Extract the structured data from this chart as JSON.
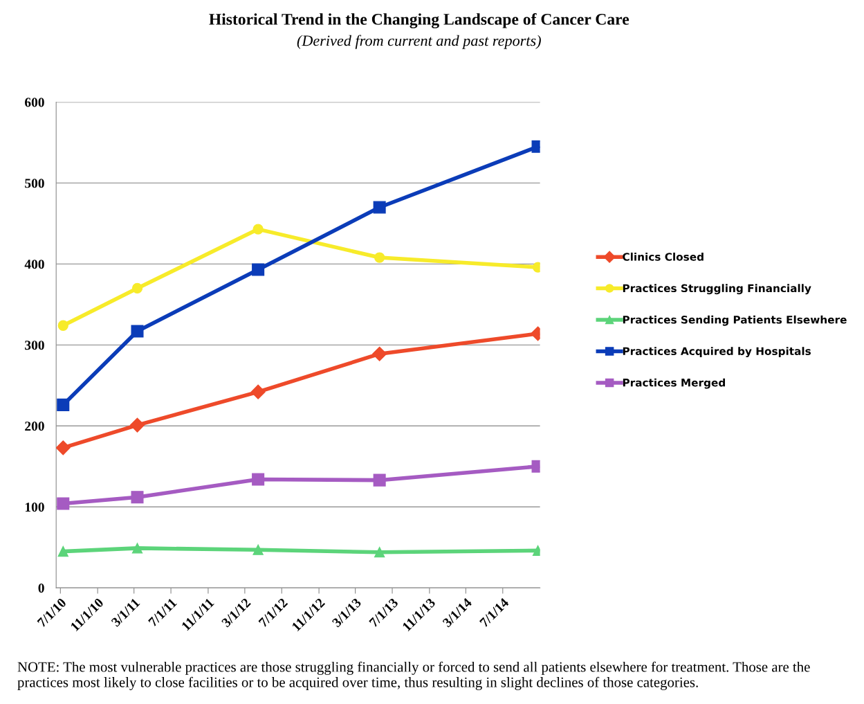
{
  "chart_data": {
    "type": "line",
    "title": "Historical Trend in the Changing Landscape of Cancer Care",
    "subtitle": "(Derived from current and past reports)",
    "x": [
      "2010-07-10",
      "2011-03-12",
      "2012-04-14",
      "2013-05-20",
      "2014-10-25"
    ],
    "series": [
      {
        "name": "Clinics Closed",
        "color": "#ee4a2a",
        "marker": "diamond",
        "values": [
          173,
          201,
          242,
          289,
          314
        ]
      },
      {
        "name": "Practices Struggling Financially",
        "color": "#f7eb2a",
        "marker": "circle",
        "values": [
          324,
          370,
          443,
          408,
          396
        ]
      },
      {
        "name": "Practices Sending Patients Elsewhere",
        "color": "#5cd47a",
        "marker": "triangle",
        "values": [
          45,
          49,
          47,
          44,
          46
        ]
      },
      {
        "name": "Practices Acquired by Hospitals",
        "color": "#0b3cb8",
        "marker": "square",
        "values": [
          226,
          317,
          393,
          470,
          545
        ]
      },
      {
        "name": "Practices Merged",
        "color": "#a55bc2",
        "marker": "square",
        "values": [
          104,
          112,
          134,
          133,
          150
        ]
      }
    ],
    "xlim": [
      "2010-06-17",
      "2014-11-01"
    ],
    "xticks": [
      {
        "value": "2010-07-01",
        "label": "7/1/10"
      },
      {
        "value": "2010-11-01",
        "label": "11/1/10"
      },
      {
        "value": "2011-03-01",
        "label": "3/1/11"
      },
      {
        "value": "2011-07-01",
        "label": "7/1/11"
      },
      {
        "value": "2011-11-01",
        "label": "11/1/11"
      },
      {
        "value": "2012-03-01",
        "label": "3/1/12"
      },
      {
        "value": "2012-07-01",
        "label": "7/1/12"
      },
      {
        "value": "2012-11-01",
        "label": "11/1/12"
      },
      {
        "value": "2013-03-01",
        "label": "3/1/13"
      },
      {
        "value": "2013-07-01",
        "label": "7/1/13"
      },
      {
        "value": "2013-11-01",
        "label": "11/1/13"
      },
      {
        "value": "2014-03-01",
        "label": "3/1/14"
      },
      {
        "value": "2014-07-01",
        "label": "7/1/14"
      }
    ],
    "ylim": [
      0,
      600
    ],
    "yticks": [
      0,
      100,
      200,
      300,
      400,
      500,
      600
    ],
    "grid": "y",
    "legend": "right",
    "line_style": "solid",
    "annotations": [
      "NOTE: The most vulnerable practices are those struggling financially or forced to send all patients elsewhere for treatment. Those are the practices most likely to close facilities or to be acquired over time, thus resulting in slight declines of those categories."
    ]
  }
}
